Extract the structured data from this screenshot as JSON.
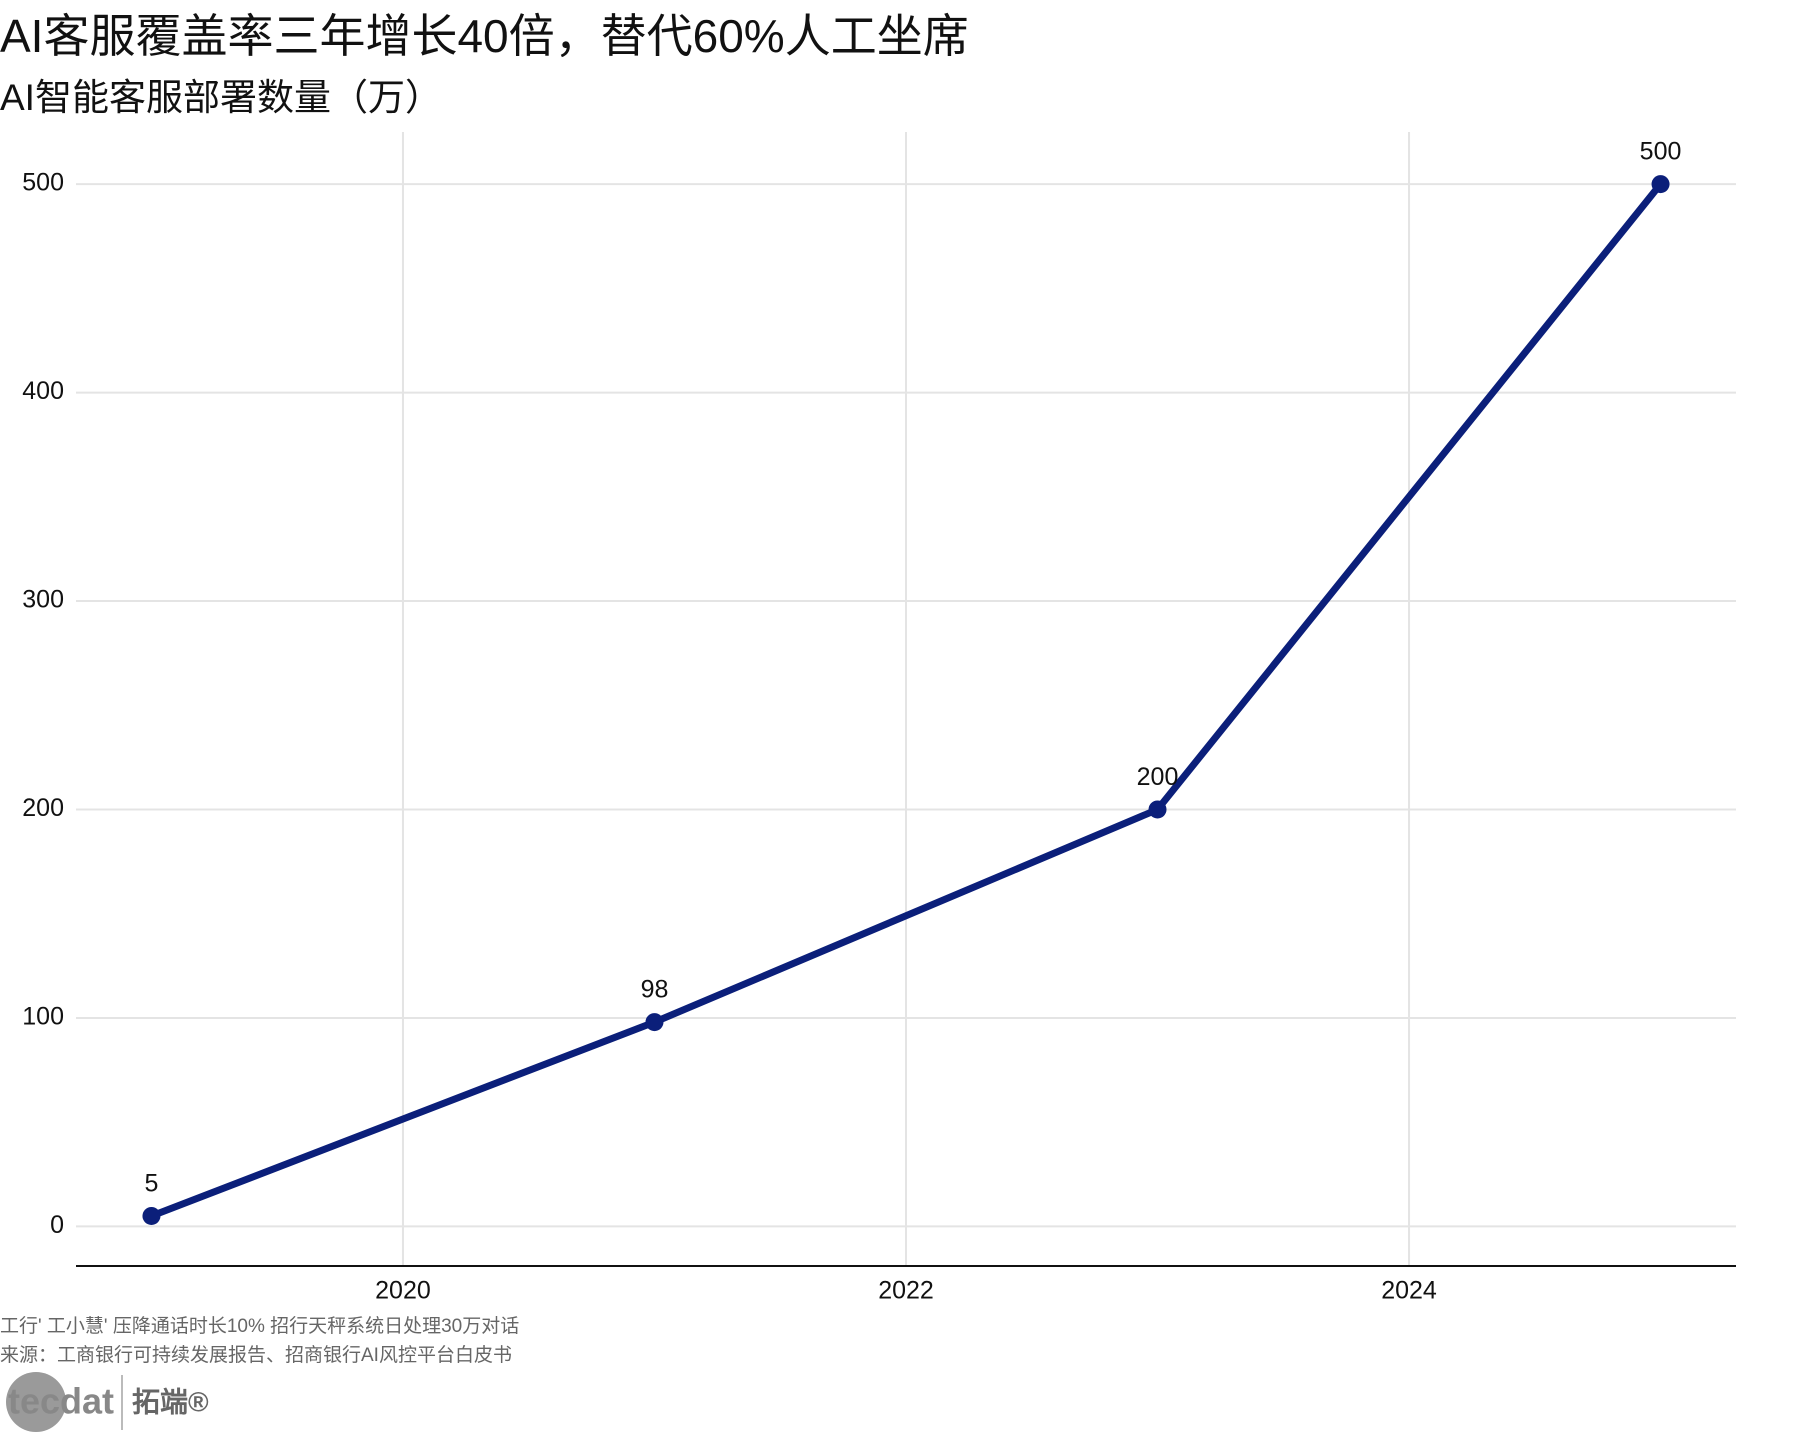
{
  "chart_data": {
    "type": "line",
    "title": "AI客服覆盖率三年增长40倍，替代60%人工坐席",
    "subtitle": "AI智能客服部署数量（万）",
    "x": [
      2019,
      2021,
      2023,
      2025
    ],
    "series": [
      {
        "name": "AI智能客服部署数量",
        "color": "#0b1f7a",
        "values": [
          5,
          98,
          200,
          500
        ]
      }
    ],
    "xlim": [
      2018.7,
      2025.3
    ],
    "xticks": [
      2020,
      2022,
      2024
    ],
    "ylim": [
      -19,
      525
    ],
    "yticks": [
      0,
      100,
      200,
      300,
      400,
      500
    ],
    "grid": true
  },
  "footer": {
    "note": "工行' 工小慧' 压降通话时长10%  招行天秤系统日处理30万对话",
    "source": "来源：工商银行可持续发展报告、招商银行AI风控平台白皮书"
  },
  "logo": {
    "mark": "tecdat",
    "name": "拓端®"
  }
}
